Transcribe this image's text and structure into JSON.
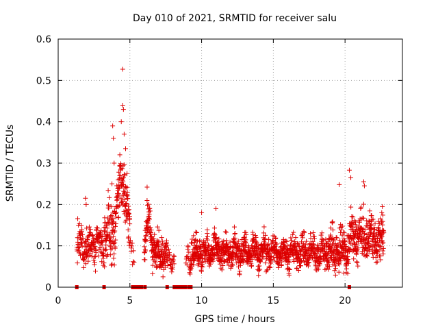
{
  "chart_data": {
    "type": "scatter",
    "title": "Day 010 of 2021, SRMTID for receiver salu",
    "xlabel": "GPS time / hours",
    "ylabel": "SRMTID / TECUs",
    "xlim": [
      0,
      24
    ],
    "ylim": [
      0,
      0.6
    ],
    "xticks": [
      0,
      5,
      10,
      15,
      20
    ],
    "xtick_labels": [
      "0",
      "5",
      "10",
      "15",
      "20"
    ],
    "yticks": [
      0,
      0.1,
      0.2,
      0.3,
      0.4,
      0.5,
      0.6
    ],
    "ytick_labels": [
      "0",
      "0.1",
      "0.2",
      "0.3",
      "0.4",
      "0.5",
      "0.6"
    ],
    "grid": true,
    "marker": "+",
    "series_color": "#dd0000",
    "gap_markers_x": [
      1.3,
      3.2,
      5.2,
      5.35,
      5.5,
      5.65,
      5.8,
      6.05,
      7.6,
      8.1,
      8.25,
      8.4,
      8.55,
      8.7,
      8.85,
      9.1,
      9.25,
      20.3
    ],
    "outliers": [
      {
        "x": 4.5,
        "y": 0.527
      },
      {
        "x": 4.5,
        "y": 0.44
      },
      {
        "x": 4.55,
        "y": 0.43
      },
      {
        "x": 4.4,
        "y": 0.4
      },
      {
        "x": 4.6,
        "y": 0.37
      },
      {
        "x": 3.8,
        "y": 0.39
      },
      {
        "x": 3.85,
        "y": 0.36
      },
      {
        "x": 4.7,
        "y": 0.335
      },
      {
        "x": 4.3,
        "y": 0.32
      },
      {
        "x": 3.9,
        "y": 0.3
      },
      {
        "x": 3.75,
        "y": 0.25
      },
      {
        "x": 4.8,
        "y": 0.275
      },
      {
        "x": 6.2,
        "y": 0.242
      },
      {
        "x": 20.3,
        "y": 0.283
      },
      {
        "x": 20.4,
        "y": 0.265
      },
      {
        "x": 19.6,
        "y": 0.248
      },
      {
        "x": 21.3,
        "y": 0.255
      },
      {
        "x": 21.35,
        "y": 0.245
      },
      {
        "x": 1.9,
        "y": 0.215
      },
      {
        "x": 1.95,
        "y": 0.2
      },
      {
        "x": 11.0,
        "y": 0.19
      },
      {
        "x": 10.0,
        "y": 0.18
      },
      {
        "x": 22.6,
        "y": 0.195
      }
    ],
    "segments": [
      {
        "x0": 1.3,
        "x1": 3.2,
        "n": 170,
        "base": 0.1,
        "spread": 0.038
      },
      {
        "x0": 3.2,
        "x1": 5.0,
        "n": 200,
        "base": 0.13,
        "spread": 0.06,
        "bump_center": 4.45,
        "bump_height": 0.14,
        "bump_width": 0.35
      },
      {
        "x0": 5.0,
        "x1": 5.3,
        "n": 10,
        "base": 0.09,
        "spread": 0.03
      },
      {
        "x0": 6.0,
        "x1": 7.6,
        "n": 190,
        "base": 0.08,
        "spread": 0.035,
        "bump_center": 6.3,
        "bump_height": 0.08,
        "bump_width": 0.25
      },
      {
        "x0": 7.6,
        "x1": 8.1,
        "n": 25,
        "base": 0.065,
        "spread": 0.02
      },
      {
        "x0": 8.9,
        "x1": 9.2,
        "n": 15,
        "base": 0.07,
        "spread": 0.02
      },
      {
        "x0": 9.2,
        "x1": 14.0,
        "n": 520,
        "base": 0.085,
        "spread": 0.03
      },
      {
        "x0": 14.0,
        "x1": 18.6,
        "n": 470,
        "base": 0.085,
        "spread": 0.03
      },
      {
        "x0": 18.6,
        "x1": 20.3,
        "n": 200,
        "base": 0.09,
        "spread": 0.045
      },
      {
        "x0": 20.3,
        "x1": 22.7,
        "n": 280,
        "base": 0.12,
        "spread": 0.045
      }
    ]
  }
}
